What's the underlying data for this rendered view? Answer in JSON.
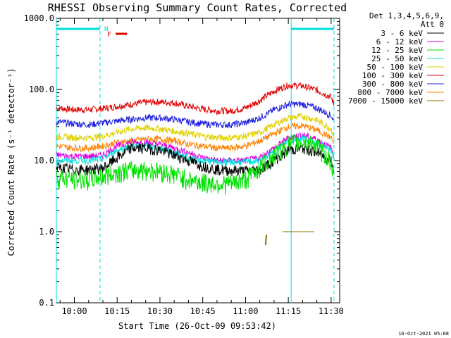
{
  "chart_data": {
    "type": "line",
    "title": "RHESSI Observing Summary Count Rates, Corrected",
    "xlabel": "Start Time (26-Oct-09 09:53:42)",
    "ylabel": "Corrected Count Rate (s⁻¹ detector⁻¹)",
    "y_scale": "log",
    "ylim": [
      0.1,
      1000
    ],
    "xlim": [
      "09:53:42",
      "11:33:00"
    ],
    "y_ticks": [
      "0.1",
      "1.0",
      "10.0",
      "100.0",
      "1000.0"
    ],
    "x_ticks": [
      "10:00",
      "10:15",
      "10:30",
      "10:45",
      "11:00",
      "11:15",
      "11:30"
    ],
    "x_tick_times": [
      "10:00",
      "10:15",
      "10:30",
      "10:45",
      "11:00",
      "11:15",
      "11:30"
    ],
    "legend_header": [
      "Det 1,3,4,5,6,9,",
      "Att 0"
    ],
    "legend_position": "top-right, outside plot",
    "annotations": {
      "night_label": "N",
      "flare_label": "F",
      "footer_date": "16-Oct-2021 05:08"
    },
    "night_intervals": [
      [
        "09:53:42",
        "10:09:00"
      ],
      [
        "11:16:00",
        "11:31:00"
      ]
    ],
    "flare_interval": [
      "10:14:00",
      "10:18:00"
    ],
    "x_times": [
      "09:53:42",
      "10:00",
      "10:05",
      "10:10",
      "10:15",
      "10:20",
      "10:25",
      "10:30",
      "10:35",
      "10:40",
      "10:45",
      "10:50",
      "10:55",
      "11:00",
      "11:05",
      "11:10",
      "11:15",
      "11:20",
      "11:25",
      "11:30",
      "11:31"
    ],
    "series": [
      {
        "name": "3 - 6 keV",
        "color": "#000000",
        "values": [
          8.0,
          7.5,
          7.5,
          7.8,
          11,
          15,
          15,
          14,
          12,
          10,
          8.5,
          7.5,
          7.3,
          7.2,
          7.5,
          10,
          14,
          15,
          13,
          10,
          7
        ]
      },
      {
        "name": "6 - 12 keV",
        "color": "#e000e0",
        "values": [
          12,
          11.5,
          11.5,
          12,
          16,
          18,
          18,
          17,
          15,
          13,
          11,
          10,
          10,
          10,
          11,
          15,
          21,
          23,
          20,
          15,
          12
        ]
      },
      {
        "name": "12 - 25 keV",
        "color": "#00e000",
        "values": [
          6,
          5.5,
          5.5,
          6,
          7,
          7.5,
          7.5,
          7.2,
          6.5,
          5.5,
          5,
          4.8,
          4.8,
          5.5,
          8,
          12,
          17,
          19,
          16,
          10,
          5
        ]
      },
      {
        "name": "25 - 50 keV",
        "color": "#00e0e0",
        "values": [
          10,
          10,
          10,
          10.5,
          14,
          16,
          16,
          15,
          13,
          11,
          10,
          9.5,
          9.5,
          9.5,
          10,
          13,
          19,
          21,
          18,
          14,
          11
        ]
      },
      {
        "name": "50 - 100 keV",
        "color": "#e0d000",
        "values": [
          22,
          21,
          21,
          22,
          25,
          28,
          29,
          28,
          26,
          24,
          22,
          21,
          21,
          22,
          25,
          32,
          40,
          42,
          37,
          28,
          22
        ]
      },
      {
        "name": "100 - 300 keV",
        "color": "#e00000",
        "values": [
          55,
          52,
          52,
          54,
          58,
          62,
          66,
          67,
          65,
          58,
          53,
          50,
          50,
          55,
          70,
          95,
          115,
          112,
          98,
          78,
          62
        ]
      },
      {
        "name": "300 - 800 keV",
        "color": "#2020e0",
        "values": [
          35,
          33,
          32,
          34,
          36,
          38,
          40,
          40,
          38,
          35,
          33,
          32,
          32,
          34,
          40,
          52,
          62,
          62,
          55,
          43,
          36
        ]
      },
      {
        "name": "800 - 7000 keV",
        "color": "#ff8000",
        "values": [
          16,
          15,
          15,
          16,
          18,
          19,
          20,
          20,
          19,
          17,
          16,
          15,
          15,
          16,
          19,
          24,
          30,
          31,
          27,
          21,
          17
        ]
      },
      {
        "name": "7000 - 15000 keV",
        "color": "#8b7300",
        "segments": [
          {
            "x": [
              "11:07:00",
              "11:07:20"
            ],
            "y": [
              0.65,
              0.9
            ]
          },
          {
            "x": [
              "11:13:00",
              "11:24:00"
            ],
            "y": [
              1.0,
              1.0
            ]
          }
        ]
      }
    ]
  }
}
